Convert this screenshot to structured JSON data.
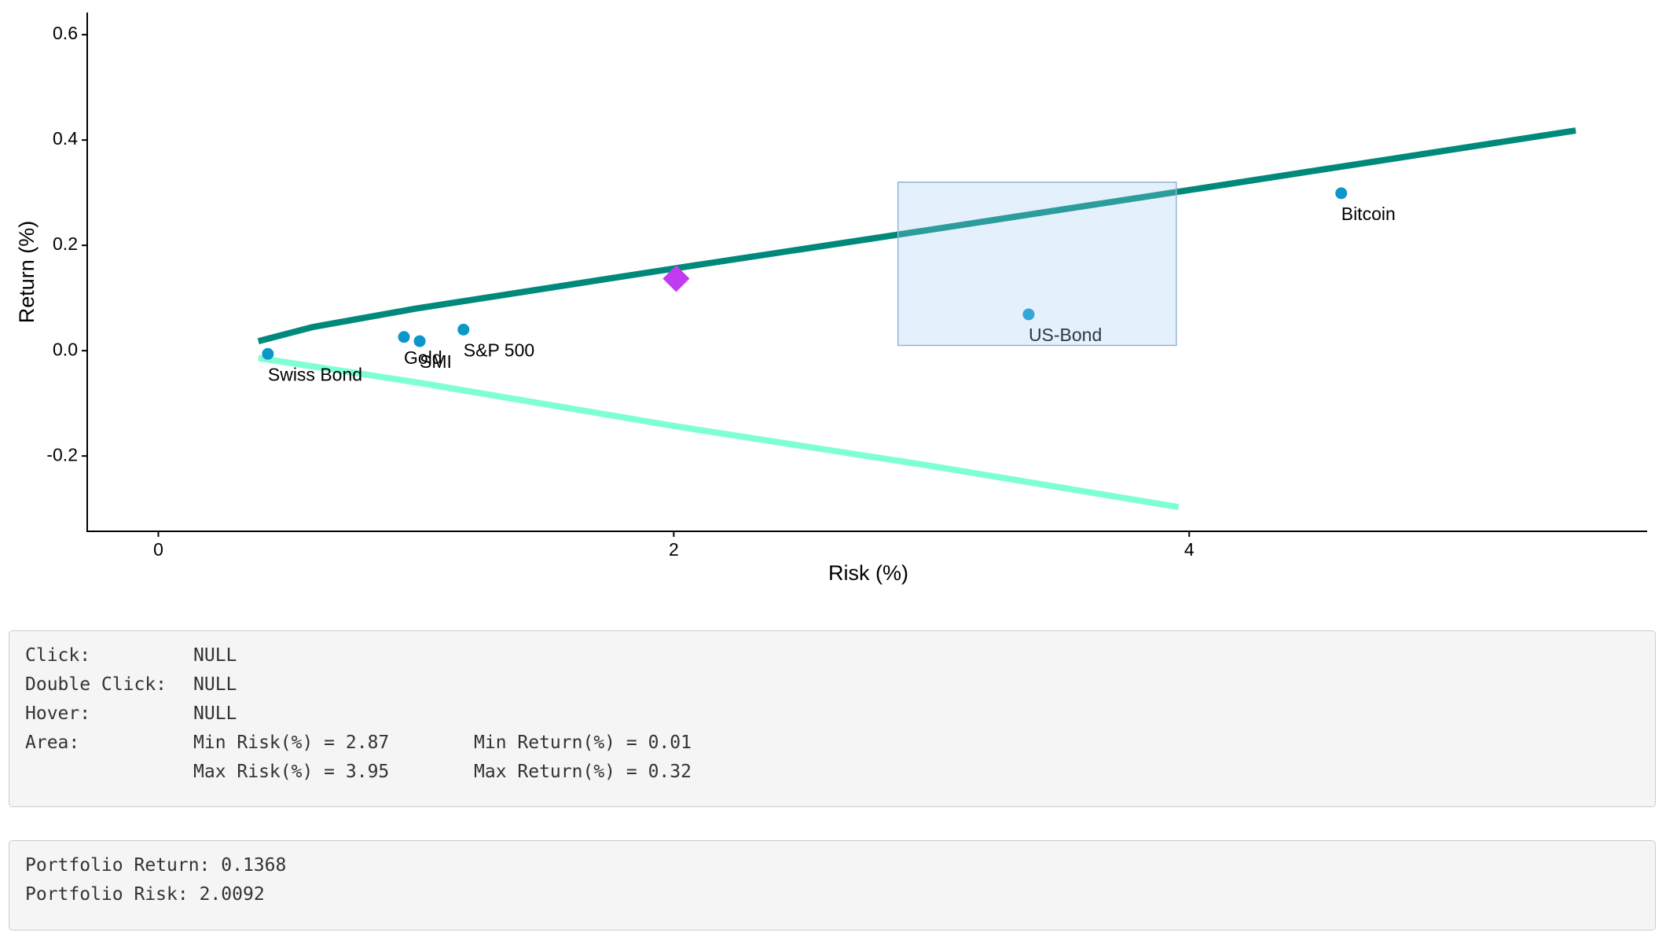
{
  "chart_data": {
    "type": "scatter",
    "xlabel": "Risk (%)",
    "ylabel": "Return (%)",
    "categories": [
      "Swiss Bond",
      "Gold",
      "SMI",
      "S&P 500",
      "US-Bond",
      "Bitcoin"
    ],
    "x": [
      0.425,
      0.953,
      1.014,
      1.184,
      3.377,
      4.59
    ],
    "values": [
      -0.006,
      0.026,
      0.018,
      0.04,
      0.069,
      0.299
    ],
    "color": "#0c96c9",
    "lines": [
      {
        "color": "#00897b",
        "x": [
          0.388,
          0.6,
          1.0,
          2.0,
          3.0,
          4.0,
          5.5
        ],
        "values": [
          0.018,
          0.045,
          0.08,
          0.156,
          0.23,
          0.305,
          0.418
        ]
      },
      {
        "color": "#7fffd4",
        "x": [
          0.388,
          1.0,
          2.0,
          3.0,
          3.959
        ],
        "values": [
          -0.014,
          -0.06,
          -0.143,
          -0.219,
          -0.297
        ]
      }
    ],
    "portfolio": {
      "x": 2.0092,
      "y": 0.1368,
      "color": "#c13bf0"
    },
    "brush": {
      "xmin": 2.87,
      "xmax": 3.95,
      "ymin": 0.01,
      "ymax": 0.32,
      "color": "#9ecbf5"
    },
    "xlim": [
      -0.276,
      5.777
    ],
    "ylim": [
      -0.343,
      0.642
    ],
    "xticks": [
      0,
      2,
      4
    ],
    "yticks": [
      -0.2,
      {
        "value": 0,
        "label": "0.0"
      },
      0.2,
      0.4,
      0.6
    ]
  },
  "info": {
    "click_label": "Click:",
    "click_value": "NULL",
    "dblclick_label": "Double Click:",
    "dblclick_value": "NULL",
    "hover_label": "Hover:",
    "hover_value": "NULL",
    "area_label": "Area:",
    "min_risk_label": "Min Risk(%) =",
    "min_return_label": "Min Return(%) =",
    "max_risk_label": "Max Risk(%) =",
    "max_return_label": "Max Return(%) ="
  },
  "portfolio_box": {
    "return_label": "Portfolio Return:",
    "risk_label": "Portfolio Risk:"
  }
}
